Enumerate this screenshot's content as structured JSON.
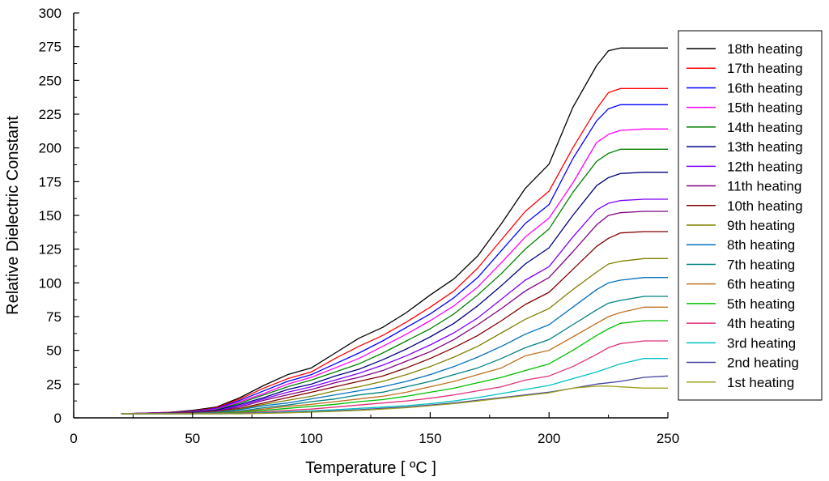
{
  "chart_data": {
    "type": "line",
    "title": "",
    "xlabel": "Temperature [ ºC ]",
    "ylabel": "Relative Dielectric Constant",
    "xlim": [
      0,
      250
    ],
    "ylim": [
      0,
      300
    ],
    "x_ticks": [
      0,
      50,
      100,
      150,
      200,
      250
    ],
    "y_ticks": [
      0,
      25,
      50,
      75,
      100,
      125,
      150,
      175,
      200,
      225,
      250,
      275,
      300
    ],
    "grid": false,
    "legend_position": "right",
    "x": [
      20,
      30,
      40,
      50,
      60,
      70,
      80,
      90,
      100,
      110,
      120,
      130,
      140,
      150,
      160,
      170,
      180,
      190,
      200,
      210,
      220,
      225,
      230,
      240,
      250
    ],
    "series": [
      {
        "name": "18th heating",
        "color": "#000000",
        "values": [
          3,
          3.5,
          4,
          5.5,
          8,
          15,
          24,
          32,
          37,
          48,
          59,
          67,
          78,
          91,
          103,
          120,
          144,
          170,
          188,
          230,
          261,
          272,
          274,
          274,
          274
        ]
      },
      {
        "name": "17th heating",
        "color": "#ff0000",
        "values": [
          3,
          3.5,
          4,
          5,
          7.5,
          14,
          22,
          29,
          34,
          44,
          53,
          61,
          71,
          82,
          94,
          111,
          132,
          153,
          168,
          200,
          229,
          241,
          244,
          244,
          244
        ]
      },
      {
        "name": "16th heating",
        "color": "#0000ff",
        "values": [
          3,
          3.4,
          3.9,
          4.8,
          7,
          13,
          20,
          27,
          32,
          40,
          48,
          57,
          67,
          77,
          89,
          104,
          124,
          144,
          158,
          192,
          220,
          229,
          232,
          232,
          232
        ]
      },
      {
        "name": "15th heating",
        "color": "#ff00ff",
        "values": [
          3,
          3.4,
          3.8,
          4.6,
          6.5,
          12,
          18,
          25,
          30,
          37,
          44,
          53,
          62,
          72,
          83,
          97,
          115,
          134,
          148,
          174,
          204,
          210,
          213,
          214,
          214
        ]
      },
      {
        "name": "14th heating",
        "color": "#008000",
        "values": [
          3,
          3.3,
          3.7,
          4.4,
          6,
          11,
          17,
          23,
          28,
          34,
          40,
          48,
          57,
          66,
          77,
          91,
          107,
          125,
          140,
          167,
          190,
          196,
          199,
          199,
          199
        ]
      },
      {
        "name": "13th heating",
        "color": "#000080",
        "values": [
          3,
          3.3,
          3.6,
          4.2,
          5.6,
          10,
          15,
          21,
          25,
          31,
          36,
          43,
          51,
          60,
          70,
          83,
          98,
          114,
          126,
          150,
          172,
          178,
          181,
          182,
          182
        ]
      },
      {
        "name": "12th heating",
        "color": "#8000ff",
        "values": [
          3,
          3.2,
          3.5,
          4,
          5.2,
          9,
          14,
          19,
          23,
          28,
          33,
          39,
          46,
          54,
          63,
          74,
          88,
          102,
          112,
          134,
          154,
          159,
          161,
          162,
          162
        ]
      },
      {
        "name": "11th heating",
        "color": "#800080",
        "values": [
          3,
          3.2,
          3.4,
          3.8,
          4.9,
          8,
          13,
          17,
          21,
          26,
          30,
          35,
          42,
          49,
          58,
          69,
          81,
          94,
          104,
          123,
          143,
          150,
          152,
          153,
          153
        ]
      },
      {
        "name": "10th heating",
        "color": "#800000",
        "values": [
          3,
          3.1,
          3.3,
          3.6,
          4.6,
          7,
          11,
          15,
          19,
          23,
          27,
          31,
          37,
          44,
          52,
          61,
          72,
          84,
          93,
          110,
          127,
          133,
          137,
          138,
          138
        ]
      },
      {
        "name": "9th heating",
        "color": "#808000",
        "values": [
          3,
          3.1,
          3.2,
          3.4,
          4.3,
          6.5,
          10,
          13,
          16,
          20,
          23,
          27,
          32,
          38,
          45,
          53,
          63,
          73,
          81,
          95,
          108,
          114,
          116,
          118,
          118
        ]
      },
      {
        "name": "8th heating",
        "color": "#0070c0",
        "values": [
          3,
          3,
          3.1,
          3.3,
          4,
          6,
          9,
          11,
          14,
          17,
          20,
          23,
          27,
          32,
          38,
          45,
          53,
          62,
          69,
          82,
          95,
          100,
          102,
          104,
          104
        ]
      },
      {
        "name": "7th heating",
        "color": "#008080",
        "values": [
          3,
          3,
          3,
          3.2,
          3.7,
          5,
          7.5,
          9.5,
          12,
          14,
          17,
          19,
          23,
          27,
          32,
          37,
          44,
          52,
          58,
          69,
          80,
          85,
          87,
          90,
          90
        ]
      },
      {
        "name": "6th heating",
        "color": "#c07020",
        "values": [
          3,
          3,
          3,
          3.1,
          3.5,
          4.5,
          6.5,
          8.5,
          10,
          12,
          14,
          16,
          19,
          23,
          27,
          32,
          37,
          46,
          50,
          60,
          70,
          75,
          78,
          82,
          82
        ]
      },
      {
        "name": "5th heating",
        "color": "#00c000",
        "values": [
          3,
          3,
          3,
          3,
          3.3,
          4,
          5.5,
          7,
          8.5,
          10,
          12,
          13.5,
          16,
          19,
          22,
          26,
          30,
          35,
          40,
          50,
          61,
          66,
          70,
          72,
          72
        ]
      },
      {
        "name": "4th heating",
        "color": "#e0307a",
        "values": [
          3,
          3,
          3,
          3,
          3.1,
          3.5,
          4.5,
          5.5,
          6.5,
          8,
          9.5,
          11,
          12.5,
          14.5,
          17,
          20,
          23,
          28,
          31,
          38,
          47,
          52,
          55,
          57,
          57
        ]
      },
      {
        "name": "3rd heating",
        "color": "#00c0c0",
        "values": [
          3,
          3,
          3,
          3,
          3,
          3.2,
          3.8,
          4.5,
          5.2,
          6,
          7,
          8,
          9,
          10.5,
          12.5,
          15,
          18,
          21,
          24,
          29,
          34,
          37,
          40,
          44,
          44
        ]
      },
      {
        "name": "2nd heating",
        "color": "#4040a0",
        "values": [
          3,
          3,
          3,
          3,
          3,
          3.1,
          3.5,
          4,
          4.5,
          5.2,
          6,
          7,
          8,
          9.5,
          11,
          13,
          15,
          17,
          19,
          22,
          25,
          26,
          27,
          30,
          31
        ]
      },
      {
        "name": "1st heating",
        "color": "#a0a020",
        "values": [
          3,
          3,
          3,
          3,
          3,
          3,
          3.3,
          3.7,
          4.2,
          4.8,
          5.5,
          6.5,
          7.5,
          9,
          10.5,
          12.5,
          14.5,
          16.5,
          18.5,
          22,
          23.5,
          23.5,
          23,
          22,
          22
        ]
      }
    ]
  }
}
